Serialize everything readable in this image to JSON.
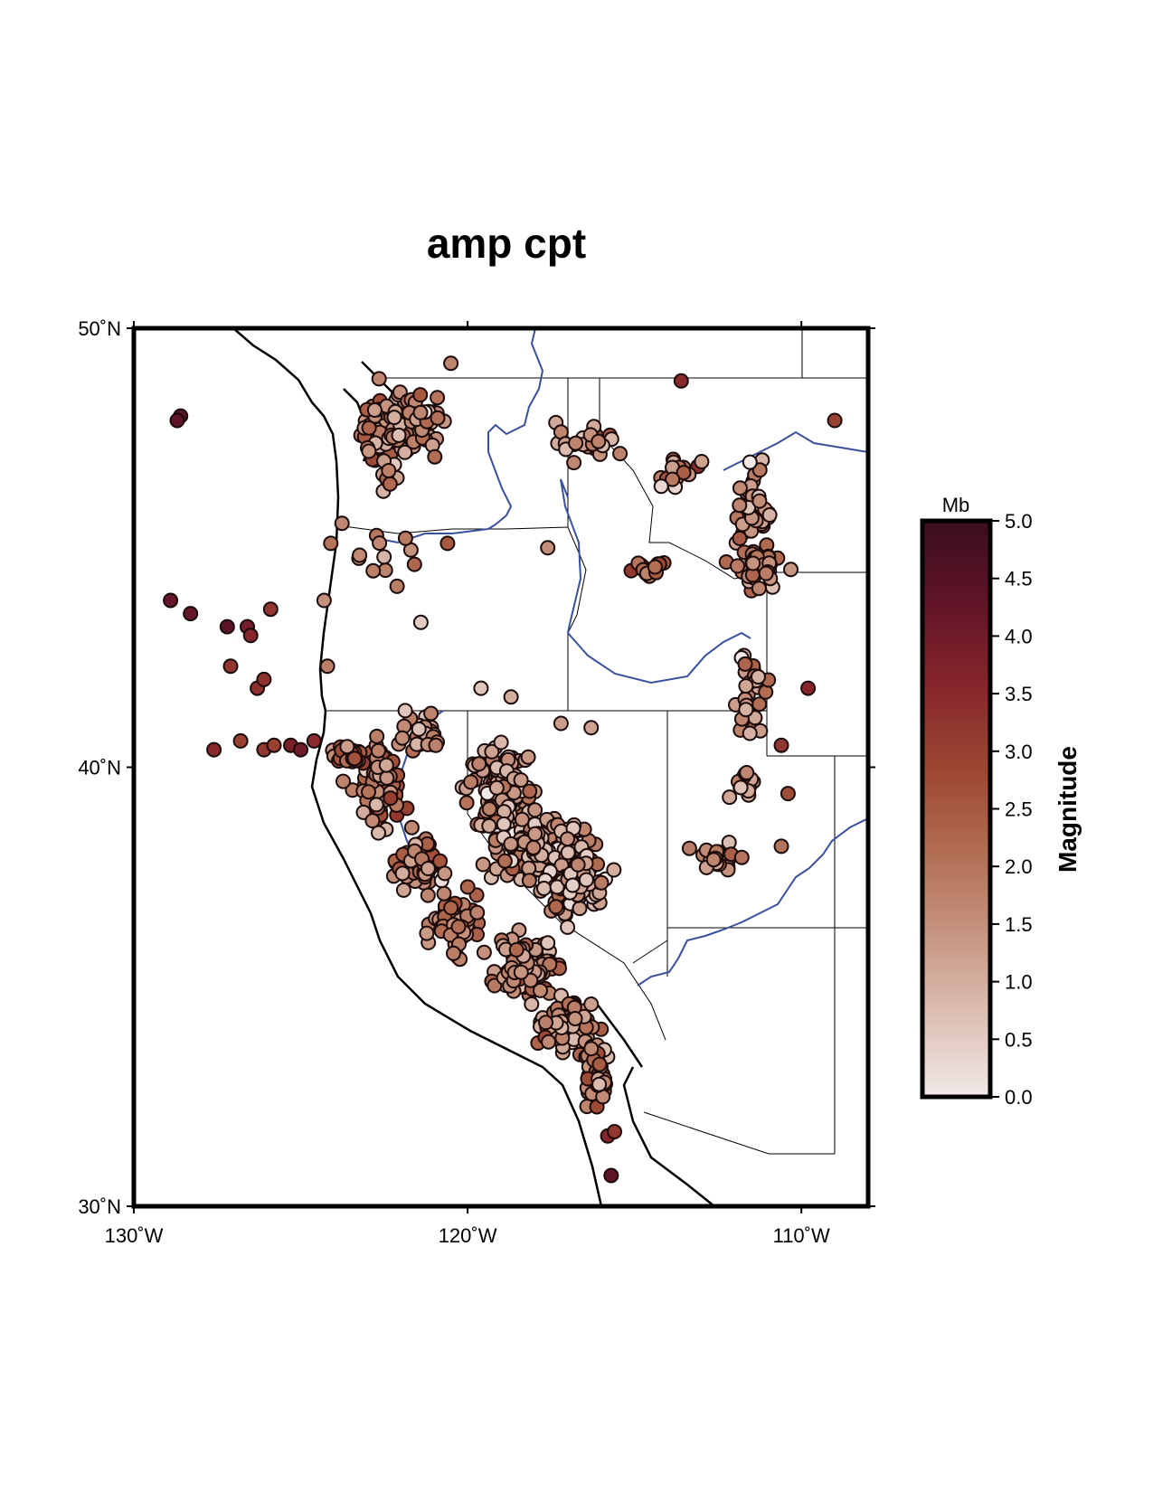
{
  "title": "amp cpt",
  "map": {
    "projection": "lonlat",
    "lon_range": [
      -130,
      -108
    ],
    "lat_range": [
      30,
      50
    ],
    "lat_ticks": [
      {
        "value": 50,
        "label": "50˚N"
      },
      {
        "value": 40,
        "label": "40˚N"
      },
      {
        "value": 30,
        "label": "30˚N"
      }
    ],
    "lon_ticks": [
      {
        "value": -130,
        "label": "130˚W"
      },
      {
        "value": -120,
        "label": "120˚W"
      },
      {
        "value": -110,
        "label": "110˚W"
      }
    ],
    "colors": {
      "coast": "#000000",
      "rivers": "#3a4f9e",
      "borders": "#000000",
      "frame": "#000000",
      "point_stroke": "#1a0a0a"
    }
  },
  "colorbar": {
    "unit": "Mb",
    "label": "Magnitude",
    "range": [
      0,
      5
    ],
    "tick_labels": [
      "0.0",
      "0.5",
      "1.0",
      "1.5",
      "2.0",
      "2.5",
      "3.0",
      "3.5",
      "4.0",
      "4.5",
      "5.0"
    ],
    "colormap": "amp",
    "stops": [
      "#f1e9e8",
      "#dcbfb3",
      "#c69480",
      "#b16c52",
      "#9c4632",
      "#86262c",
      "#611428",
      "#3a0e1e"
    ]
  },
  "chart_data": {
    "type": "scatter",
    "title": "amp cpt",
    "xlabel": "",
    "ylabel": "",
    "color_label": "Magnitude",
    "color_unit": "Mb",
    "clim": [
      0,
      5
    ],
    "xlim": [
      -130,
      -108
    ],
    "ylim": [
      30,
      50
    ],
    "clusters": [
      {
        "name": "",
        "lon": -122.4,
        "lat": 47.6,
        "spread_lon": 0.8,
        "spread_lat": 1.0,
        "count": 90,
        "mag_mean": 1.6
      },
      {
        "name": "",
        "lon": -121.3,
        "lat": 47.9,
        "spread_lon": 0.7,
        "spread_lat": 0.8,
        "count": 30,
        "mag_mean": 1.7
      },
      {
        "name": "",
        "lon": -116.3,
        "lat": 47.4,
        "spread_lon": 1.0,
        "spread_lat": 0.4,
        "count": 25,
        "mag_mean": 1.3
      },
      {
        "name": "",
        "lon": -113.6,
        "lat": 46.7,
        "spread_lon": 0.6,
        "spread_lat": 0.3,
        "count": 20,
        "mag_mean": 1.9
      },
      {
        "name": "",
        "lon": -111.4,
        "lat": 45.6,
        "spread_lon": 0.5,
        "spread_lat": 1.2,
        "count": 50,
        "mag_mean": 1.4
      },
      {
        "name": "",
        "lon": -111.3,
        "lat": 44.6,
        "spread_lon": 0.6,
        "spread_lat": 0.5,
        "count": 35,
        "mag_mean": 1.7
      },
      {
        "name": "",
        "lon": -114.6,
        "lat": 44.5,
        "spread_lon": 0.6,
        "spread_lat": 0.2,
        "count": 15,
        "mag_mean": 2.0
      },
      {
        "name": "",
        "lon": -111.6,
        "lat": 41.6,
        "spread_lon": 0.5,
        "spread_lat": 1.0,
        "count": 30,
        "mag_mean": 1.5
      },
      {
        "name": "",
        "lon": -111.7,
        "lat": 39.7,
        "spread_lon": 0.4,
        "spread_lat": 0.3,
        "count": 15,
        "mag_mean": 1.6
      },
      {
        "name": "",
        "lon": -112.5,
        "lat": 38.0,
        "spread_lon": 0.6,
        "spread_lat": 0.3,
        "count": 20,
        "mag_mean": 1.6
      },
      {
        "name": "",
        "lon": -119.0,
        "lat": 39.5,
        "spread_lon": 1.0,
        "spread_lat": 1.0,
        "count": 120,
        "mag_mean": 1.2
      },
      {
        "name": "",
        "lon": -117.8,
        "lat": 38.2,
        "spread_lon": 1.4,
        "spread_lat": 0.7,
        "count": 140,
        "mag_mean": 1.2
      },
      {
        "name": "",
        "lon": -116.8,
        "lat": 37.3,
        "spread_lon": 0.9,
        "spread_lat": 0.6,
        "count": 90,
        "mag_mean": 1.0
      },
      {
        "name": "",
        "lon": -122.6,
        "lat": 39.6,
        "spread_lon": 0.6,
        "spread_lat": 1.0,
        "count": 70,
        "mag_mean": 2.0
      },
      {
        "name": "",
        "lon": -121.5,
        "lat": 37.8,
        "spread_lon": 0.6,
        "spread_lat": 0.6,
        "count": 60,
        "mag_mean": 1.8
      },
      {
        "name": "",
        "lon": -120.3,
        "lat": 36.4,
        "spread_lon": 0.7,
        "spread_lat": 0.6,
        "count": 70,
        "mag_mean": 1.7
      },
      {
        "name": "",
        "lon": -118.3,
        "lat": 35.4,
        "spread_lon": 0.8,
        "spread_lat": 0.6,
        "count": 100,
        "mag_mean": 1.5
      },
      {
        "name": "",
        "lon": -117.0,
        "lat": 34.1,
        "spread_lon": 0.7,
        "spread_lat": 0.5,
        "count": 90,
        "mag_mean": 1.4
      },
      {
        "name": "",
        "lon": -116.1,
        "lat": 33.0,
        "spread_lon": 0.4,
        "spread_lat": 0.6,
        "count": 45,
        "mag_mean": 1.8
      },
      {
        "name": "",
        "lon": -123.6,
        "lat": 40.3,
        "spread_lon": 0.5,
        "spread_lat": 0.3,
        "count": 30,
        "mag_mean": 2.3
      },
      {
        "name": "",
        "lon": -121.3,
        "lat": 40.8,
        "spread_lon": 0.6,
        "spread_lat": 0.5,
        "count": 30,
        "mag_mean": 1.6
      },
      {
        "name": "",
        "lon": -122.5,
        "lat": 44.7,
        "spread_lon": 1.2,
        "spread_lat": 0.8,
        "count": 12,
        "mag_mean": 1.8
      }
    ],
    "points": [
      {
        "lon": -128.6,
        "lat": 48.0,
        "mag": 4.5
      },
      {
        "lon": -128.7,
        "lat": 47.9,
        "mag": 4.3
      },
      {
        "lon": -128.9,
        "lat": 43.8,
        "mag": 4.2
      },
      {
        "lon": -128.3,
        "lat": 43.5,
        "mag": 4.2
      },
      {
        "lon": -127.2,
        "lat": 43.2,
        "mag": 4.4
      },
      {
        "lon": -126.6,
        "lat": 43.2,
        "mag": 3.9
      },
      {
        "lon": -126.5,
        "lat": 43.0,
        "mag": 3.6
      },
      {
        "lon": -125.9,
        "lat": 43.6,
        "mag": 3.2
      },
      {
        "lon": -127.1,
        "lat": 42.3,
        "mag": 3.2
      },
      {
        "lon": -126.3,
        "lat": 41.8,
        "mag": 3.4
      },
      {
        "lon": -126.1,
        "lat": 42.0,
        "mag": 3.3
      },
      {
        "lon": -127.6,
        "lat": 40.4,
        "mag": 3.5
      },
      {
        "lon": -126.8,
        "lat": 40.6,
        "mag": 3.0
      },
      {
        "lon": -126.1,
        "lat": 40.4,
        "mag": 3.2
      },
      {
        "lon": -125.8,
        "lat": 40.5,
        "mag": 3.0
      },
      {
        "lon": -125.3,
        "lat": 40.5,
        "mag": 3.8
      },
      {
        "lon": -125.0,
        "lat": 40.4,
        "mag": 4.0
      },
      {
        "lon": -124.6,
        "lat": 40.6,
        "mag": 3.5
      },
      {
        "lon": -115.7,
        "lat": 30.7,
        "mag": 4.3
      },
      {
        "lon": -115.8,
        "lat": 31.6,
        "mag": 3.6
      },
      {
        "lon": -115.6,
        "lat": 31.7,
        "mag": 3.2
      },
      {
        "lon": -113.6,
        "lat": 48.8,
        "mag": 3.5
      },
      {
        "lon": -109.0,
        "lat": 47.9,
        "mag": 3.0
      },
      {
        "lon": -109.8,
        "lat": 41.8,
        "mag": 3.6
      },
      {
        "lon": -110.6,
        "lat": 40.5,
        "mag": 3.2
      },
      {
        "lon": -110.4,
        "lat": 39.4,
        "mag": 2.7
      },
      {
        "lon": -110.6,
        "lat": 38.2,
        "mag": 2.0
      },
      {
        "lon": -120.5,
        "lat": 49.2,
        "mag": 1.7
      },
      {
        "lon": -121.4,
        "lat": 43.3,
        "mag": 0.5
      },
      {
        "lon": -124.1,
        "lat": 45.1,
        "mag": 2.0
      },
      {
        "lon": -120.6,
        "lat": 45.1,
        "mag": 2.5
      },
      {
        "lon": -117.6,
        "lat": 45.0,
        "mag": 1.5
      },
      {
        "lon": -119.6,
        "lat": 41.8,
        "mag": 0.6
      },
      {
        "lon": -118.7,
        "lat": 41.6,
        "mag": 1.0
      },
      {
        "lon": -117.2,
        "lat": 41.0,
        "mag": 1.3
      },
      {
        "lon": -116.3,
        "lat": 40.9,
        "mag": 1.2
      },
      {
        "lon": -124.2,
        "lat": 42.3,
        "mag": 1.8
      },
      {
        "lon": -124.3,
        "lat": 43.8,
        "mag": 1.5
      },
      {
        "lon": -117.6,
        "lat": 36.0,
        "mag": 0.6
      },
      {
        "lon": -114.2,
        "lat": 46.4,
        "mag": 0.3
      }
    ]
  }
}
